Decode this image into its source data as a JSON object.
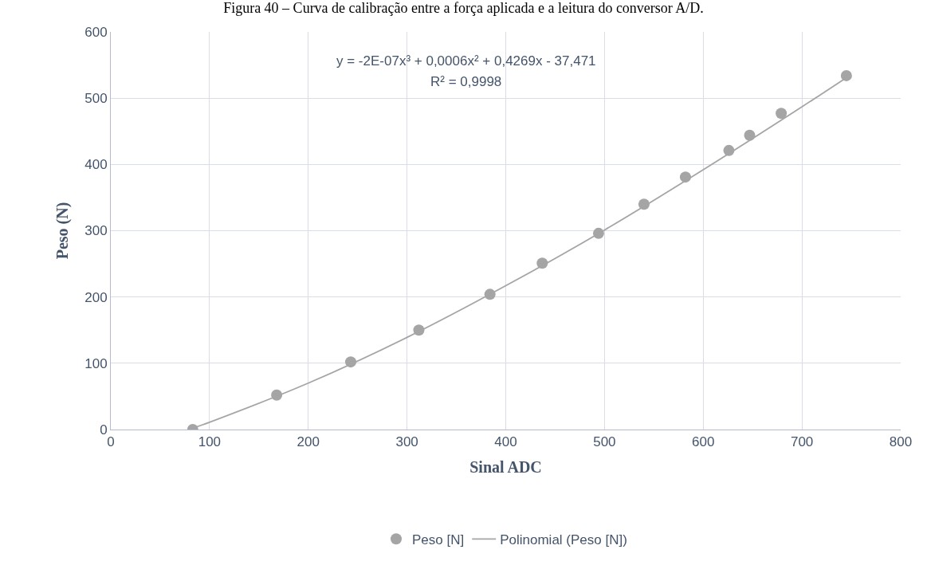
{
  "chart_data": {
    "type": "scatter",
    "title": "Figura 40 – Curva de calibração entre a força aplicada e a leitura do conversor A/D.",
    "xlabel": "Sinal ADC",
    "ylabel": "Peso (N)",
    "annotations": [
      "y = -2E-07x³ + 0,0006x² + 0,4269x - 37,471",
      "R² = 0,9998"
    ],
    "series": [
      {
        "name": "Peso [N]",
        "color": "#a5a5a5",
        "marker": "circle",
        "x": [
          83,
          168,
          243,
          312,
          384,
          437,
          494,
          540,
          582,
          626,
          647,
          679,
          745
        ],
        "values": [
          0,
          52,
          102,
          150,
          204,
          251,
          296,
          340,
          381,
          421,
          444,
          477,
          534
        ]
      },
      {
        "name": "Polinomial (Peso [N])",
        "type": "line",
        "color": "#a5a5a5",
        "marker": "none",
        "line_style": "solid",
        "x": [
          83,
          100,
          200,
          300,
          400,
          500,
          600,
          700,
          745
        ],
        "values": [
          2,
          11,
          70,
          139,
          217,
          301,
          392,
          487,
          531
        ]
      }
    ],
    "xlim": [
      0,
      800
    ],
    "xticks": [
      0,
      100,
      200,
      300,
      400,
      500,
      600,
      700,
      800
    ],
    "ylim": [
      0,
      600
    ],
    "yticks": [
      0,
      100,
      200,
      300,
      400,
      500,
      600
    ],
    "grid": true,
    "legend": "bottom"
  }
}
